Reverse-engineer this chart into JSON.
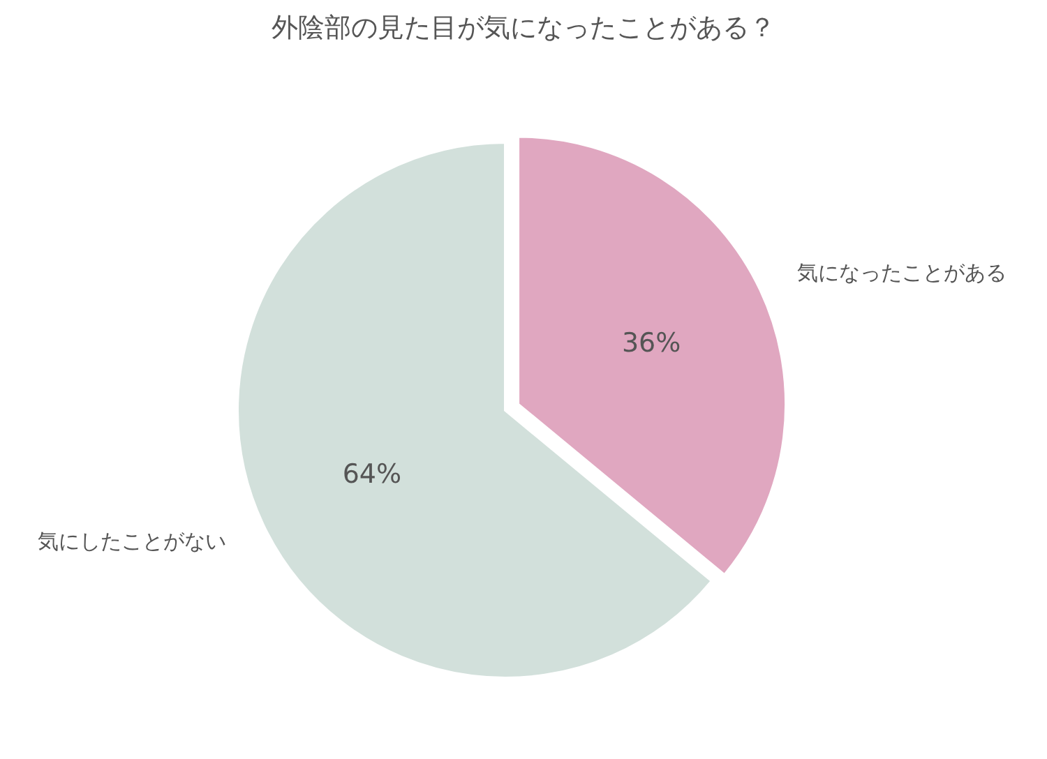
{
  "chart_data": {
    "type": "pie",
    "title": "外陰部の見た目が気になったことがある？",
    "categories": [
      "気になったことがある",
      "気にしたことがない"
    ],
    "values": [
      36,
      64
    ],
    "colors": [
      "#e0a7c0",
      "#d2e0db"
    ],
    "value_labels": [
      "36%",
      "64%"
    ]
  }
}
